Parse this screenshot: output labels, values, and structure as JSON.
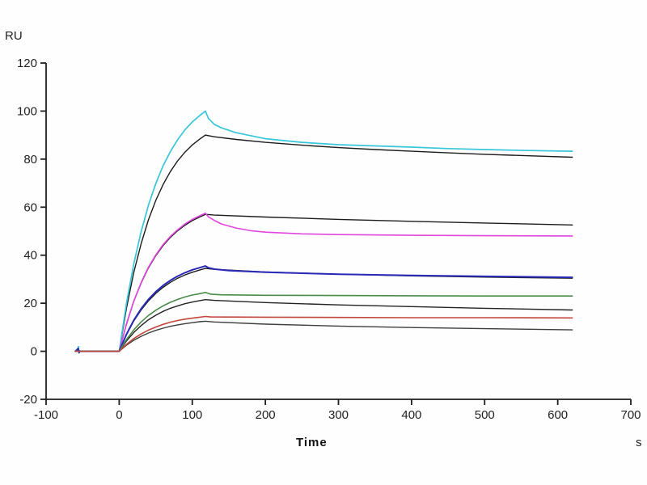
{
  "figure": {
    "background": "#ffffff",
    "axis_color": "#1f1f1f",
    "tick_label_color": "#222222"
  },
  "chart_data": {
    "type": "line",
    "title": "",
    "subtitle": "",
    "ylabel": "RU",
    "xlabel": "Time",
    "x_unit_suffix": "s",
    "xlim": [
      -100,
      700
    ],
    "ylim": [
      -20,
      120
    ],
    "xticks": [
      -100,
      0,
      100,
      200,
      300,
      400,
      500,
      600,
      700
    ],
    "yticks": [
      -20,
      0,
      20,
      40,
      60,
      80,
      100,
      120
    ],
    "grid": false,
    "legend_position": "none",
    "series": [
      {
        "name": "fit-1-black",
        "role": "fit",
        "color": "#1c1c1c",
        "width": 1.4,
        "points": [
          [
            -60,
            0
          ],
          [
            -20,
            0
          ],
          [
            0,
            0
          ],
          [
            10,
            18
          ],
          [
            20,
            32.8
          ],
          [
            30,
            44.8
          ],
          [
            40,
            54.7
          ],
          [
            50,
            62.8
          ],
          [
            60,
            69.4
          ],
          [
            70,
            74.8
          ],
          [
            80,
            79.3
          ],
          [
            90,
            82.9
          ],
          [
            100,
            85.9
          ],
          [
            110,
            88.3
          ],
          [
            118,
            90
          ],
          [
            130,
            89.3
          ],
          [
            160,
            88.2
          ],
          [
            200,
            87
          ],
          [
            250,
            85.8
          ],
          [
            300,
            84.8
          ],
          [
            350,
            84
          ],
          [
            400,
            83.3
          ],
          [
            450,
            82.6
          ],
          [
            500,
            82
          ],
          [
            560,
            81.4
          ],
          [
            620,
            80.8
          ]
        ]
      },
      {
        "name": "response-1-cyan",
        "role": "response",
        "color": "#38c6da",
        "width": 1.7,
        "points": [
          [
            -60,
            0
          ],
          [
            -57,
            0.2
          ],
          [
            -56,
            2
          ],
          [
            -55,
            -0.7
          ],
          [
            -54,
            0.3
          ],
          [
            -53,
            0
          ],
          [
            -20,
            0
          ],
          [
            0,
            0
          ],
          [
            10,
            20
          ],
          [
            20,
            36.4
          ],
          [
            30,
            49.8
          ],
          [
            40,
            60.8
          ],
          [
            50,
            69.8
          ],
          [
            60,
            77.2
          ],
          [
            70,
            83.1
          ],
          [
            80,
            88.1
          ],
          [
            90,
            92.2
          ],
          [
            100,
            95.5
          ],
          [
            110,
            98.1
          ],
          [
            118,
            100
          ],
          [
            122,
            97
          ],
          [
            130,
            94.5
          ],
          [
            140,
            93
          ],
          [
            160,
            91
          ],
          [
            200,
            88.5
          ],
          [
            250,
            87
          ],
          [
            300,
            86
          ],
          [
            350,
            85.5
          ],
          [
            400,
            85
          ],
          [
            450,
            84.4
          ],
          [
            500,
            84
          ],
          [
            560,
            83.6
          ],
          [
            620,
            83.3
          ]
        ]
      },
      {
        "name": "fit-2-black",
        "role": "fit",
        "color": "#1c1c1c",
        "width": 1.4,
        "points": [
          [
            -60,
            0
          ],
          [
            0,
            0
          ],
          [
            10,
            11.3
          ],
          [
            20,
            20.8
          ],
          [
            30,
            28.4
          ],
          [
            40,
            34.7
          ],
          [
            50,
            39.8
          ],
          [
            60,
            44
          ],
          [
            70,
            47.4
          ],
          [
            80,
            50.2
          ],
          [
            90,
            52.5
          ],
          [
            100,
            54.4
          ],
          [
            110,
            55.9
          ],
          [
            118,
            57
          ],
          [
            130,
            56.7
          ],
          [
            200,
            55.9
          ],
          [
            300,
            54.9
          ],
          [
            400,
            54.1
          ],
          [
            500,
            53.4
          ],
          [
            620,
            52.6
          ]
        ]
      },
      {
        "name": "response-2-magenta",
        "role": "response",
        "color": "#e246de",
        "width": 1.6,
        "points": [
          [
            -60,
            0
          ],
          [
            0,
            0
          ],
          [
            10,
            11.5
          ],
          [
            20,
            20.9
          ],
          [
            30,
            28.6
          ],
          [
            40,
            35
          ],
          [
            50,
            40.1
          ],
          [
            60,
            44.4
          ],
          [
            70,
            47.8
          ],
          [
            80,
            50.6
          ],
          [
            90,
            53
          ],
          [
            100,
            54.9
          ],
          [
            110,
            56.4
          ],
          [
            118,
            57.5
          ],
          [
            122,
            56
          ],
          [
            130,
            54.5
          ],
          [
            140,
            53
          ],
          [
            160,
            51.3
          ],
          [
            180,
            50.2
          ],
          [
            200,
            49.6
          ],
          [
            250,
            48.9
          ],
          [
            300,
            48.6
          ],
          [
            400,
            48.3
          ],
          [
            500,
            48.1
          ],
          [
            620,
            48
          ]
        ]
      },
      {
        "name": "fit-3-black",
        "role": "fit",
        "color": "#1c1c1c",
        "width": 1.4,
        "points": [
          [
            -60,
            0
          ],
          [
            0,
            0
          ],
          [
            10,
            6.9
          ],
          [
            20,
            12.6
          ],
          [
            30,
            17.2
          ],
          [
            40,
            21
          ],
          [
            50,
            24.1
          ],
          [
            60,
            26.6
          ],
          [
            70,
            28.7
          ],
          [
            80,
            30.4
          ],
          [
            90,
            31.8
          ],
          [
            100,
            32.9
          ],
          [
            110,
            33.8
          ],
          [
            118,
            34.5
          ],
          [
            130,
            34.1
          ],
          [
            200,
            33
          ],
          [
            300,
            32.1
          ],
          [
            400,
            31.4
          ],
          [
            500,
            30.9
          ],
          [
            620,
            30.4
          ]
        ]
      },
      {
        "name": "response-3-blue",
        "role": "response",
        "color": "#2a2ab8",
        "width": 2,
        "points": [
          [
            -60,
            0
          ],
          [
            -56,
            1.2
          ],
          [
            -55,
            -0.5
          ],
          [
            -54,
            0
          ],
          [
            0,
            0
          ],
          [
            10,
            7.1
          ],
          [
            20,
            12.9
          ],
          [
            30,
            17.7
          ],
          [
            40,
            21.6
          ],
          [
            50,
            24.8
          ],
          [
            60,
            27.4
          ],
          [
            70,
            29.5
          ],
          [
            80,
            31.3
          ],
          [
            90,
            32.7
          ],
          [
            100,
            33.9
          ],
          [
            110,
            34.8
          ],
          [
            118,
            35.5
          ],
          [
            122,
            34.8
          ],
          [
            130,
            34.2
          ],
          [
            150,
            33.6
          ],
          [
            200,
            32.9
          ],
          [
            300,
            32.1
          ],
          [
            400,
            31.6
          ],
          [
            500,
            31.2
          ],
          [
            620,
            30.8
          ]
        ]
      },
      {
        "name": "fit-4-black",
        "role": "fit",
        "color": "#222222",
        "width": 1.4,
        "points": [
          [
            -60,
            0
          ],
          [
            0,
            0
          ],
          [
            10,
            4.3
          ],
          [
            20,
            7.8
          ],
          [
            30,
            10.7
          ],
          [
            40,
            13.1
          ],
          [
            50,
            15
          ],
          [
            60,
            16.6
          ],
          [
            70,
            17.9
          ],
          [
            80,
            18.9
          ],
          [
            90,
            19.8
          ],
          [
            100,
            20.5
          ],
          [
            110,
            21.1
          ],
          [
            118,
            21.5
          ],
          [
            130,
            21.2
          ],
          [
            200,
            20.3
          ],
          [
            300,
            19.3
          ],
          [
            400,
            18.6
          ],
          [
            500,
            17.9
          ],
          [
            620,
            17.2
          ]
        ]
      },
      {
        "name": "response-4-green",
        "role": "response",
        "color": "#4a8c4a",
        "width": 1.6,
        "points": [
          [
            -60,
            0
          ],
          [
            0,
            0
          ],
          [
            10,
            4.9
          ],
          [
            20,
            8.9
          ],
          [
            30,
            12.2
          ],
          [
            40,
            14.9
          ],
          [
            50,
            17.1
          ],
          [
            60,
            18.9
          ],
          [
            70,
            20.4
          ],
          [
            80,
            21.6
          ],
          [
            90,
            22.6
          ],
          [
            100,
            23.4
          ],
          [
            110,
            24
          ],
          [
            118,
            24.5
          ],
          [
            125,
            23.8
          ],
          [
            140,
            23.5
          ],
          [
            200,
            23.3
          ],
          [
            300,
            23.2
          ],
          [
            400,
            23.1
          ],
          [
            500,
            23
          ],
          [
            620,
            23
          ]
        ]
      },
      {
        "name": "fit-5-gray",
        "role": "fit",
        "color": "#3d3d3d",
        "width": 1.4,
        "points": [
          [
            -60,
            0
          ],
          [
            0,
            0
          ],
          [
            10,
            2.5
          ],
          [
            20,
            4.6
          ],
          [
            30,
            6.2
          ],
          [
            40,
            7.6
          ],
          [
            50,
            8.7
          ],
          [
            60,
            9.6
          ],
          [
            70,
            10.4
          ],
          [
            80,
            11
          ],
          [
            90,
            11.5
          ],
          [
            100,
            11.9
          ],
          [
            110,
            12.3
          ],
          [
            118,
            12.5
          ],
          [
            130,
            12.2
          ],
          [
            200,
            11.3
          ],
          [
            300,
            10.5
          ],
          [
            400,
            9.9
          ],
          [
            500,
            9.4
          ],
          [
            620,
            8.9
          ]
        ]
      },
      {
        "name": "response-5-red",
        "role": "response",
        "color": "#c2463a",
        "width": 1.6,
        "points": [
          [
            -60,
            0
          ],
          [
            0,
            0
          ],
          [
            10,
            2.9
          ],
          [
            20,
            5.3
          ],
          [
            30,
            7.2
          ],
          [
            40,
            8.8
          ],
          [
            50,
            10.1
          ],
          [
            60,
            11.2
          ],
          [
            70,
            12.1
          ],
          [
            80,
            12.8
          ],
          [
            90,
            13.4
          ],
          [
            100,
            13.8
          ],
          [
            110,
            14.2
          ],
          [
            118,
            14.5
          ],
          [
            125,
            14.3
          ],
          [
            200,
            14.2
          ],
          [
            300,
            14.1
          ],
          [
            400,
            14
          ],
          [
            500,
            14
          ],
          [
            620,
            13.9
          ]
        ]
      }
    ]
  }
}
